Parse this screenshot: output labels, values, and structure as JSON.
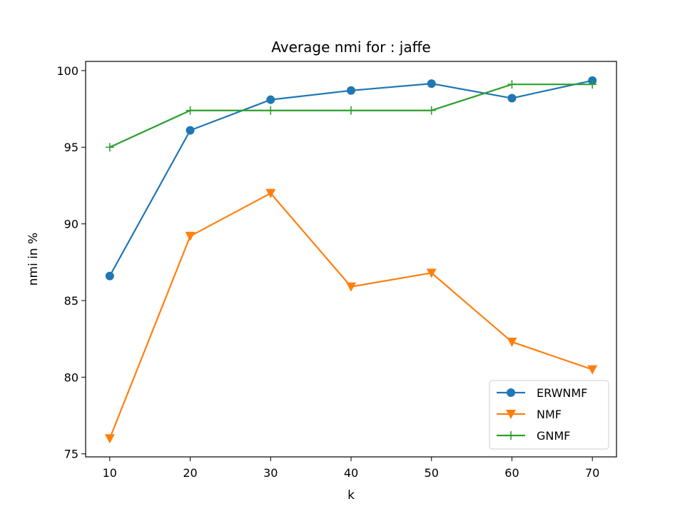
{
  "chart_data": {
    "type": "line",
    "title": "Average nmi for : jaffe",
    "xlabel": "k",
    "ylabel": "nmi in %",
    "x": [
      10,
      20,
      30,
      40,
      50,
      60,
      70
    ],
    "xticks": [
      "10",
      "20",
      "30",
      "40",
      "50",
      "60",
      "70"
    ],
    "yticks": [
      "75",
      "80",
      "85",
      "90",
      "95",
      "100"
    ],
    "xlim": [
      7,
      73
    ],
    "ylim": [
      74.8,
      100.6
    ],
    "grid": false,
    "legend_position": "lower-right",
    "series": [
      {
        "name": "ERWNMF",
        "marker": "circle",
        "color": "#1f77b4",
        "values": [
          86.6,
          96.1,
          98.1,
          98.7,
          99.15,
          98.2,
          99.35
        ]
      },
      {
        "name": "NMF",
        "marker": "triangle-down",
        "color": "#ff7f0e",
        "values": [
          76.0,
          89.2,
          92.0,
          85.9,
          86.8,
          82.3,
          80.5
        ]
      },
      {
        "name": "GNMF",
        "marker": "plus",
        "color": "#2ca02c",
        "values": [
          95.0,
          97.4,
          97.4,
          97.4,
          97.4,
          99.1,
          99.1
        ]
      }
    ]
  }
}
